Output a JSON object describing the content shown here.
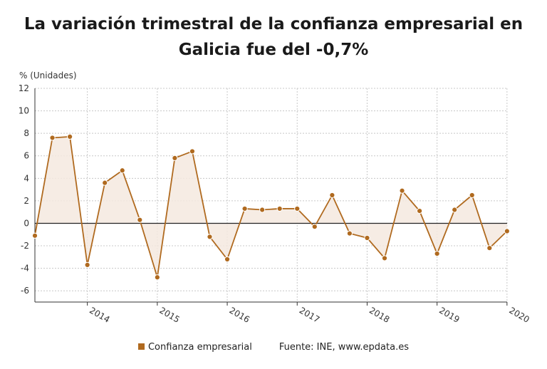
{
  "title_line1": "La variación trimestral de la confianza empresarial en",
  "title_line2": "Galicia fue del -0,7%",
  "unit_label": "% (Unidades)",
  "legend_label": "Confianza empresarial",
  "source": "Fuente: INE, www.epdata.es",
  "colors": {
    "series": "#b06a1f",
    "fill": "#f5e9df",
    "grid": "#c8c8c8",
    "axis": "#333333"
  },
  "chart_data": {
    "type": "area",
    "title": "La variación trimestral de la confianza empresarial en Galicia fue del -0,7%",
    "ylabel": "% (Unidades)",
    "ylim": [
      -7,
      12
    ],
    "yticks": [
      -6,
      -4,
      -2,
      0,
      2,
      4,
      6,
      8,
      10,
      12
    ],
    "xticks": [
      "2014",
      "2015",
      "2016",
      "2017",
      "2018",
      "2019",
      "2020"
    ],
    "x": [
      "2013-T2",
      "2013-T3",
      "2013-T4",
      "2014-T1",
      "2014-T2",
      "2014-T3",
      "2014-T4",
      "2015-T1",
      "2015-T2",
      "2015-T3",
      "2015-T4",
      "2016-T1",
      "2016-T2",
      "2016-T3",
      "2016-T4",
      "2017-T1",
      "2017-T2",
      "2017-T3",
      "2017-T4",
      "2018-T1",
      "2018-T2",
      "2018-T3",
      "2018-T4",
      "2019-T1",
      "2019-T2",
      "2019-T3",
      "2019-T4",
      "2020-T1"
    ],
    "grid": true,
    "legend_position": "bottom",
    "series": [
      {
        "name": "Confianza empresarial",
        "values": [
          -1.1,
          7.6,
          7.7,
          -3.7,
          3.6,
          4.7,
          0.3,
          -4.8,
          5.8,
          6.4,
          -1.2,
          -3.2,
          1.3,
          1.2,
          1.3,
          1.3,
          -0.3,
          2.5,
          -0.9,
          -1.3,
          -3.1,
          2.9,
          1.1,
          -2.7,
          1.2,
          2.5,
          -2.2,
          -0.7
        ]
      }
    ]
  }
}
